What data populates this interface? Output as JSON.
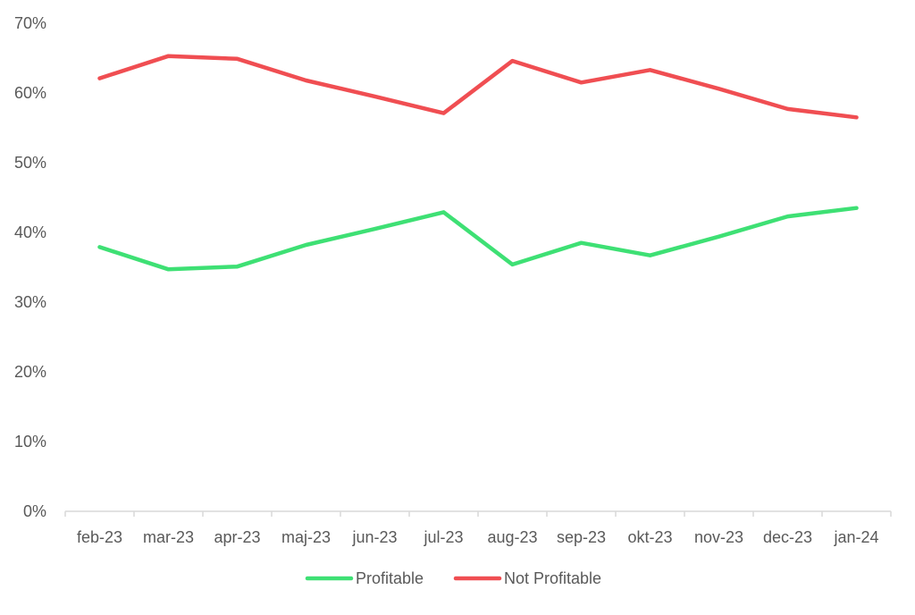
{
  "chart_data": {
    "type": "line",
    "title": "",
    "xlabel": "",
    "ylabel": "",
    "categories": [
      "feb-23",
      "mar-23",
      "apr-23",
      "maj-23",
      "jun-23",
      "jul-23",
      "aug-23",
      "sep-23",
      "okt-23",
      "nov-23",
      "dec-23",
      "jan-24"
    ],
    "ylim": [
      0,
      70
    ],
    "yticks": [
      0,
      10,
      20,
      30,
      40,
      50,
      60,
      70
    ],
    "ytick_labels": [
      "0%",
      "10%",
      "20%",
      "30%",
      "40%",
      "50%",
      "60%",
      "70%"
    ],
    "grid": false,
    "legend_position": "bottom",
    "series": [
      {
        "name": "Profitable",
        "color": "#3EE074",
        "values": [
          37.9,
          34.7,
          35.1,
          38.2,
          40.5,
          42.9,
          35.4,
          38.5,
          36.7,
          39.4,
          42.3,
          43.5
        ]
      },
      {
        "name": "Not Profitable",
        "color": "#F04E52",
        "values": [
          62.1,
          65.3,
          64.9,
          61.8,
          59.5,
          57.1,
          64.6,
          61.5,
          63.3,
          60.6,
          57.7,
          56.5
        ]
      }
    ]
  }
}
